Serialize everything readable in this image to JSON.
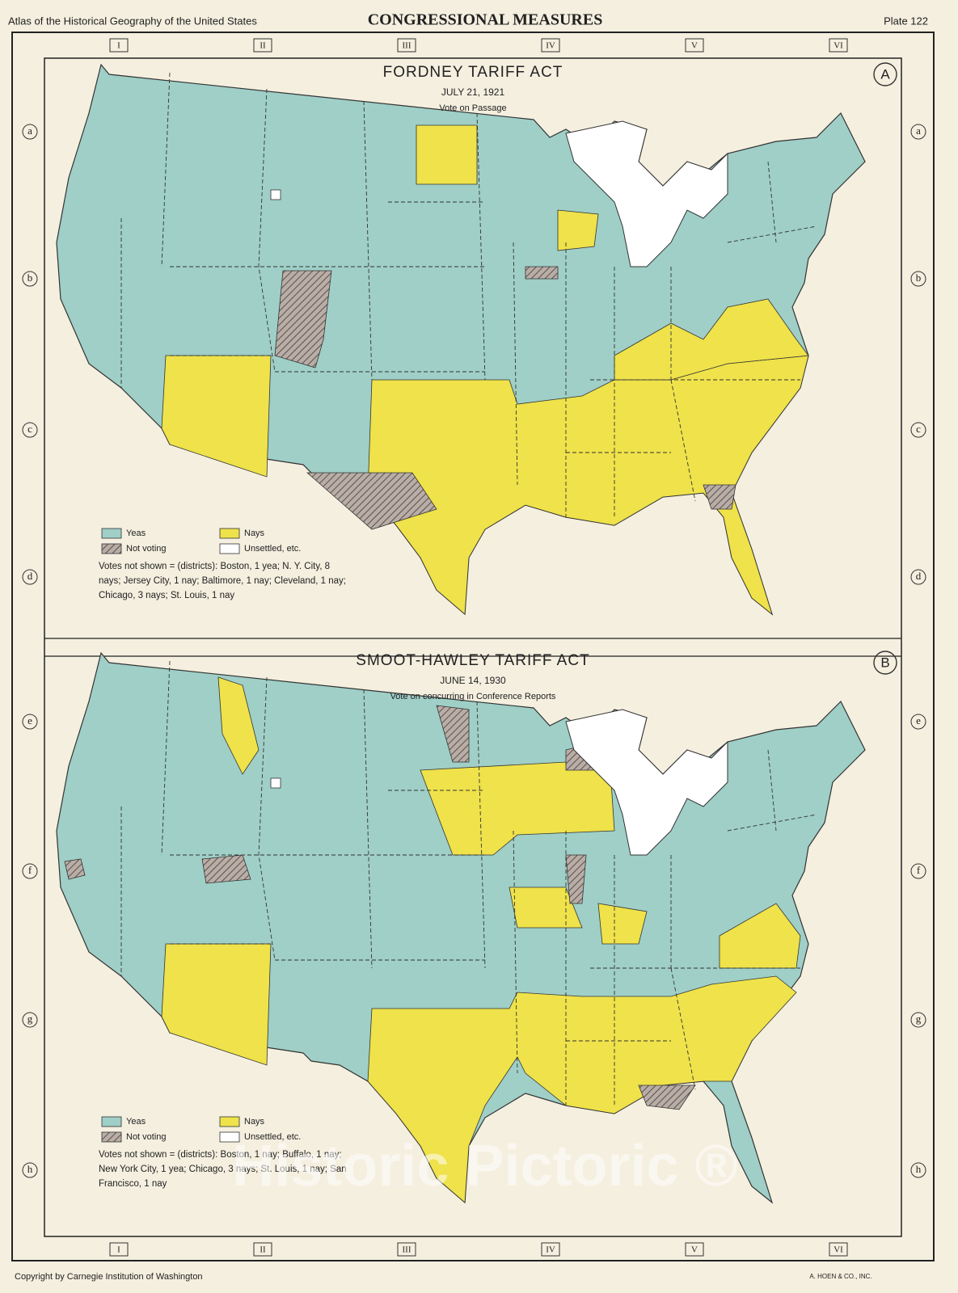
{
  "header": {
    "atlas": "Atlas of the Historical Geography of the United States",
    "title": "CONGRESSIONAL MEASURES",
    "plate": "Plate 122"
  },
  "columns": [
    "I",
    "II",
    "III",
    "IV",
    "V",
    "VI"
  ],
  "rows": [
    "a",
    "b",
    "c",
    "d",
    "e",
    "f",
    "g",
    "h"
  ],
  "maps": [
    {
      "letter": "A",
      "title": "FORDNEY TARIFF ACT",
      "date": "JULY 21, 1921",
      "subtitle": "Vote on Passage",
      "legend": {
        "yeas": "Yeas",
        "nays": "Nays",
        "not_voting": "Not voting",
        "unsettled": "Unsettled, etc."
      },
      "note": "Votes not shown = (districts): Boston, 1 yea; N. Y. City, 8 nays; Jersey City, 1 nay; Baltimore, 1 nay; Cleveland, 1 nay; Chicago, 3 nays; St. Louis, 1 nay"
    },
    {
      "letter": "B",
      "title": "SMOOT-HAWLEY TARIFF ACT",
      "date": "JUNE 14, 1930",
      "subtitle": "Vote on concurring in Conference Reports",
      "legend": {
        "yeas": "Yeas",
        "nays": "Nays",
        "not_voting": "Not voting",
        "unsettled": "Unsettled, etc."
      },
      "note": "Votes not shown = (districts): Boston, 1 nay; Buffalo, 1 nay; New York City, 1 yea; Chicago, 3 nays; St. Louis, 1 nay; San Francisco, 1 nay"
    }
  ],
  "footer": {
    "copyright": "Copyright by Carnegie Institution of Washington",
    "printer": "A. HOEN & CO., INC."
  },
  "watermark": "Historic Pictoric ®"
}
